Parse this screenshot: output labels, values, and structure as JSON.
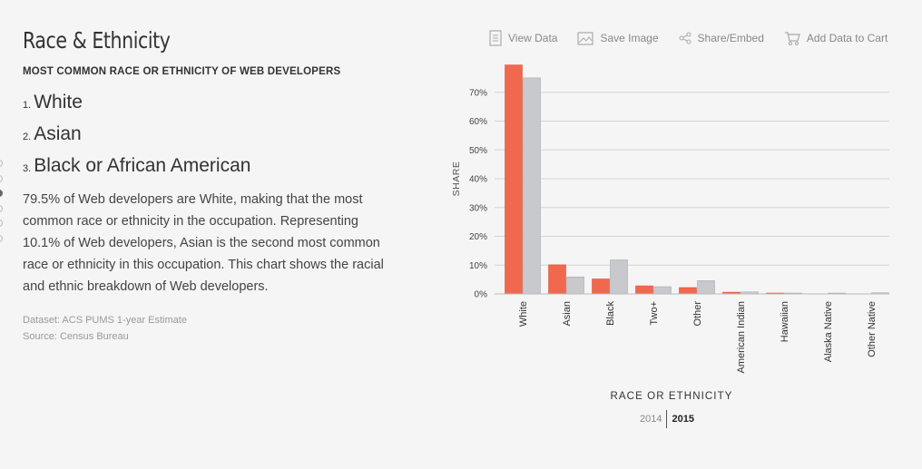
{
  "section": {
    "title": "Race & Ethnicity",
    "subtitle": "MOST COMMON RACE OR ETHNICITY OF WEB DEVELOPERS"
  },
  "ranked": [
    {
      "num": "1.",
      "label": "White"
    },
    {
      "num": "2.",
      "label": "Asian"
    },
    {
      "num": "3.",
      "label": "Black or African American"
    }
  ],
  "description": "79.5% of Web developers are White, making that the most common race or ethnicity in the occupation. Representing 10.1% of Web developers, Asian is the second most common race or ethnicity in this occupation. This chart shows the racial and ethnic breakdown of Web developers.",
  "meta": {
    "dataset": "Dataset: ACS PUMS 1-year Estimate",
    "source": "Source: Census Bureau"
  },
  "toolbar": {
    "view_data": "View Data",
    "save_image": "Save Image",
    "share_embed": "Share/Embed",
    "add_to_cart": "Add Data to Cart"
  },
  "years": {
    "a": "2014",
    "b": "2015",
    "selected": "2015"
  },
  "colors": {
    "series_a": "#f0694e",
    "series_b": "#c8c9cd"
  },
  "chart_data": {
    "type": "bar",
    "categories": [
      "White",
      "Asian",
      "Black",
      "Two+",
      "Other",
      "American Indian",
      "Hawaiian",
      "Alaska Native",
      "Other Native"
    ],
    "series": [
      {
        "values": [
          79.5,
          10.1,
          5.2,
          2.8,
          2.2,
          0.6,
          0.3,
          0.0,
          0.0
        ]
      },
      {
        "values": [
          75.0,
          5.9,
          11.8,
          2.5,
          4.6,
          0.7,
          0.3,
          0.3,
          0.4
        ]
      }
    ],
    "xlabel": "RACE OR ETHNICITY",
    "ylabel": "SHARE",
    "ylim": [
      0,
      80
    ],
    "yticks": [
      0,
      10,
      20,
      30,
      40,
      50,
      60,
      70
    ],
    "ytick_labels": [
      "0%",
      "10%",
      "20%",
      "30%",
      "40%",
      "50%",
      "60%",
      "70%"
    ],
    "grid": true
  }
}
